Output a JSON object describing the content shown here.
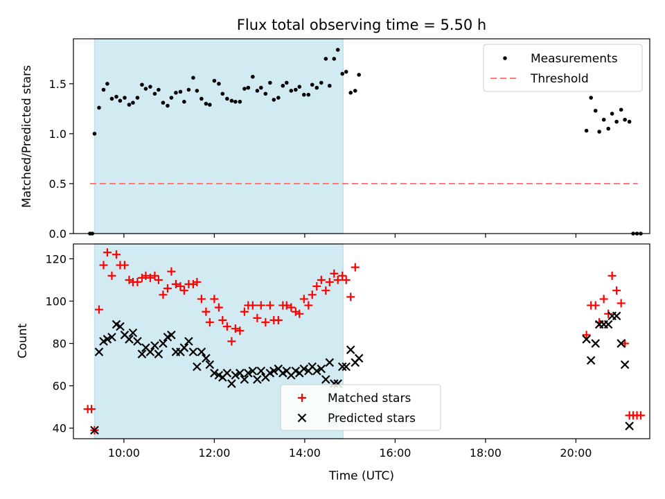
{
  "chart_data": {
    "title": "Flux total observing time = 5.50 h",
    "xlabel": "Time (UTC)",
    "x_unit": "UTC time",
    "xlim": [
      "08:53",
      "21:38"
    ],
    "xticks": [
      "10:00",
      "12:00",
      "14:00",
      "16:00",
      "18:00",
      "20:00"
    ],
    "shaded_span": {
      "from": "09:21",
      "to": "14:51",
      "color": "#add8e6"
    },
    "panels": [
      {
        "type": "scatter",
        "ylabel": "Matched/Predicted stars",
        "ylim": [
          0,
          1.95
        ],
        "yticks": [
          "0.0",
          "0.5",
          "1.0",
          "1.5"
        ],
        "legend_position": "top-right",
        "series": [
          {
            "name": "Measurements",
            "marker": "dot",
            "color": "#000000",
            "points": [
              [
                "09:15",
                0.0
              ],
              [
                "09:18",
                0.0
              ],
              [
                "09:21",
                1.0
              ],
              [
                "09:27",
                1.26
              ],
              [
                "09:33",
                1.44
              ],
              [
                "09:38",
                1.5
              ],
              [
                "09:44",
                1.35
              ],
              [
                "09:50",
                1.37
              ],
              [
                "09:55",
                1.33
              ],
              [
                "10:01",
                1.36
              ],
              [
                "10:07",
                1.29
              ],
              [
                "10:12",
                1.31
              ],
              [
                "10:18",
                1.36
              ],
              [
                "10:24",
                1.49
              ],
              [
                "10:29",
                1.45
              ],
              [
                "10:35",
                1.47
              ],
              [
                "10:41",
                1.4
              ],
              [
                "10:46",
                1.44
              ],
              [
                "10:52",
                1.31
              ],
              [
                "10:58",
                1.28
              ],
              [
                "11:03",
                1.36
              ],
              [
                "11:09",
                1.41
              ],
              [
                "11:15",
                1.42
              ],
              [
                "11:20",
                1.32
              ],
              [
                "11:26",
                1.44
              ],
              [
                "11:32",
                1.56
              ],
              [
                "11:37",
                1.43
              ],
              [
                "11:43",
                1.35
              ],
              [
                "11:49",
                1.3
              ],
              [
                "11:54",
                1.29
              ],
              [
                "12:00",
                1.53
              ],
              [
                "12:06",
                1.5
              ],
              [
                "12:11",
                1.4
              ],
              [
                "12:17",
                1.35
              ],
              [
                "12:23",
                1.33
              ],
              [
                "12:28",
                1.32
              ],
              [
                "12:34",
                1.32
              ],
              [
                "12:40",
                1.45
              ],
              [
                "12:45",
                1.46
              ],
              [
                "12:51",
                1.57
              ],
              [
                "12:57",
                1.43
              ],
              [
                "13:02",
                1.46
              ],
              [
                "13:08",
                1.4
              ],
              [
                "13:14",
                1.51
              ],
              [
                "13:19",
                1.34
              ],
              [
                "13:25",
                1.36
              ],
              [
                "13:31",
                1.48
              ],
              [
                "13:36",
                1.51
              ],
              [
                "13:42",
                1.43
              ],
              [
                "13:48",
                1.44
              ],
              [
                "13:53",
                1.47
              ],
              [
                "13:59",
                1.39
              ],
              [
                "14:05",
                1.39
              ],
              [
                "14:10",
                1.49
              ],
              [
                "14:16",
                1.46
              ],
              [
                "14:22",
                1.51
              ],
              [
                "14:28",
                1.75
              ],
              [
                "14:33",
                1.48
              ],
              [
                "14:39",
                1.75
              ],
              [
                "14:44",
                1.84
              ],
              [
                "14:50",
                1.6
              ],
              [
                "14:55",
                1.62
              ],
              [
                "15:01",
                1.41
              ],
              [
                "15:07",
                1.43
              ],
              [
                "15:12",
                1.59
              ],
              [
                "20:14",
                1.03
              ],
              [
                "20:20",
                1.36
              ],
              [
                "20:26",
                1.23
              ],
              [
                "20:31",
                1.02
              ],
              [
                "20:37",
                1.14
              ],
              [
                "20:43",
                1.05
              ],
              [
                "20:48",
                1.2
              ],
              [
                "20:54",
                1.12
              ],
              [
                "21:00",
                1.24
              ],
              [
                "21:05",
                1.14
              ],
              [
                "21:11",
                1.12
              ],
              [
                "21:16",
                0.0
              ],
              [
                "21:21",
                0.0
              ],
              [
                "21:26",
                0.0
              ]
            ]
          },
          {
            "name": "Threshold",
            "marker": "dashed-line",
            "color": "#ff7777",
            "from": "09:15",
            "to": "21:22",
            "value": 0.5
          }
        ]
      },
      {
        "type": "scatter",
        "ylabel": "Count",
        "ylim": [
          35,
          127
        ],
        "yticks": [
          "40",
          "60",
          "80",
          "100",
          "120"
        ],
        "legend_position": "bottom-center",
        "series": [
          {
            "name": "Matched stars",
            "marker": "plus",
            "color": "#ff0000",
            "points": [
              [
                "09:12",
                49
              ],
              [
                "09:17",
                49
              ],
              [
                "09:21",
                39
              ],
              [
                "09:27",
                96
              ],
              [
                "09:33",
                117
              ],
              [
                "09:38",
                123
              ],
              [
                "09:44",
                112
              ],
              [
                "09:50",
                122
              ],
              [
                "09:55",
                117
              ],
              [
                "10:01",
                117
              ],
              [
                "10:07",
                110
              ],
              [
                "10:12",
                109
              ],
              [
                "10:18",
                109
              ],
              [
                "10:24",
                111
              ],
              [
                "10:29",
                112
              ],
              [
                "10:35",
                111
              ],
              [
                "10:41",
                112
              ],
              [
                "10:46",
                110
              ],
              [
                "10:52",
                103
              ],
              [
                "10:58",
                106
              ],
              [
                "11:03",
                114
              ],
              [
                "11:09",
                108
              ],
              [
                "11:15",
                107
              ],
              [
                "11:20",
                105
              ],
              [
                "11:26",
                108
              ],
              [
                "11:32",
                108
              ],
              [
                "11:37",
                109
              ],
              [
                "11:43",
                101
              ],
              [
                "11:49",
                95
              ],
              [
                "11:54",
                90
              ],
              [
                "12:00",
                101
              ],
              [
                "12:06",
                97
              ],
              [
                "12:11",
                91
              ],
              [
                "12:17",
                88
              ],
              [
                "12:23",
                81
              ],
              [
                "12:28",
                87
              ],
              [
                "12:34",
                86
              ],
              [
                "12:40",
                95
              ],
              [
                "12:45",
                98
              ],
              [
                "12:51",
                98
              ],
              [
                "12:57",
                92
              ],
              [
                "13:02",
                98
              ],
              [
                "13:08",
                90
              ],
              [
                "13:14",
                98
              ],
              [
                "13:19",
                91
              ],
              [
                "13:25",
                91
              ],
              [
                "13:31",
                98
              ],
              [
                "13:36",
                98
              ],
              [
                "13:42",
                97
              ],
              [
                "13:48",
                95
              ],
              [
                "13:53",
                94
              ],
              [
                "13:59",
                101
              ],
              [
                "14:05",
                98
              ],
              [
                "14:10",
                103
              ],
              [
                "14:16",
                107
              ],
              [
                "14:22",
                110
              ],
              [
                "14:28",
                105
              ],
              [
                "14:33",
                109
              ],
              [
                "14:39",
                113
              ],
              [
                "14:44",
                110
              ],
              [
                "14:50",
                112
              ],
              [
                "14:55",
                110
              ],
              [
                "15:01",
                102
              ],
              [
                "15:07",
                116
              ],
              [
                "20:14",
                84
              ],
              [
                "20:20",
                98
              ],
              [
                "20:26",
                98
              ],
              [
                "20:31",
                90
              ],
              [
                "20:37",
                101
              ],
              [
                "20:43",
                94
              ],
              [
                "20:48",
                112
              ],
              [
                "20:54",
                105
              ],
              [
                "21:00",
                99
              ],
              [
                "21:05",
                80
              ],
              [
                "21:11",
                46
              ],
              [
                "21:16",
                46
              ],
              [
                "21:21",
                46
              ],
              [
                "21:26",
                46
              ]
            ]
          },
          {
            "name": "Predicted stars",
            "marker": "x",
            "color": "#000000",
            "points": [
              [
                "09:21",
                39
              ],
              [
                "09:27",
                76
              ],
              [
                "09:33",
                81
              ],
              [
                "09:38",
                82
              ],
              [
                "09:44",
                83
              ],
              [
                "09:50",
                89
              ],
              [
                "09:55",
                88
              ],
              [
                "10:01",
                84
              ],
              [
                "10:07",
                82
              ],
              [
                "10:12",
                85
              ],
              [
                "10:18",
                81
              ],
              [
                "10:24",
                75
              ],
              [
                "10:29",
                78
              ],
              [
                "10:35",
                76
              ],
              [
                "10:41",
                79
              ],
              [
                "10:46",
                75
              ],
              [
                "10:52",
                80
              ],
              [
                "10:58",
                83
              ],
              [
                "11:03",
                84
              ],
              [
                "11:09",
                76
              ],
              [
                "11:15",
                76
              ],
              [
                "11:20",
                78
              ],
              [
                "11:26",
                81
              ],
              [
                "11:32",
                76
              ],
              [
                "11:37",
                69
              ],
              [
                "11:43",
                76
              ],
              [
                "11:49",
                73
              ],
              [
                "11:54",
                70
              ],
              [
                "12:00",
                66
              ],
              [
                "12:06",
                65
              ],
              [
                "12:11",
                64
              ],
              [
                "12:17",
                66
              ],
              [
                "12:23",
                61
              ],
              [
                "12:28",
                65
              ],
              [
                "12:34",
                66
              ],
              [
                "12:40",
                63
              ],
              [
                "12:45",
                66
              ],
              [
                "12:51",
                67
              ],
              [
                "12:57",
                63
              ],
              [
                "13:02",
                67
              ],
              [
                "13:08",
                64
              ],
              [
                "13:14",
                66
              ],
              [
                "13:19",
                67
              ],
              [
                "13:25",
                68
              ],
              [
                "13:31",
                66
              ],
              [
                "13:36",
                67
              ],
              [
                "13:42",
                65
              ],
              [
                "13:48",
                67
              ],
              [
                "13:53",
                66
              ],
              [
                "13:59",
                68
              ],
              [
                "14:05",
                67
              ],
              [
                "14:10",
                69
              ],
              [
                "14:16",
                67
              ],
              [
                "14:22",
                68
              ],
              [
                "14:28",
                63
              ],
              [
                "14:33",
                71
              ],
              [
                "14:39",
                61
              ],
              [
                "14:44",
                61
              ],
              [
                "14:50",
                69
              ],
              [
                "14:55",
                69
              ],
              [
                "15:01",
                77
              ],
              [
                "15:07",
                71
              ],
              [
                "15:12",
                73
              ],
              [
                "20:14",
                82
              ],
              [
                "20:20",
                72
              ],
              [
                "20:26",
                80
              ],
              [
                "20:31",
                89
              ],
              [
                "20:37",
                89
              ],
              [
                "20:43",
                89
              ],
              [
                "20:48",
                93
              ],
              [
                "20:54",
                93
              ],
              [
                "21:00",
                80
              ],
              [
                "21:05",
                70
              ],
              [
                "21:11",
                41
              ]
            ]
          }
        ]
      }
    ]
  }
}
